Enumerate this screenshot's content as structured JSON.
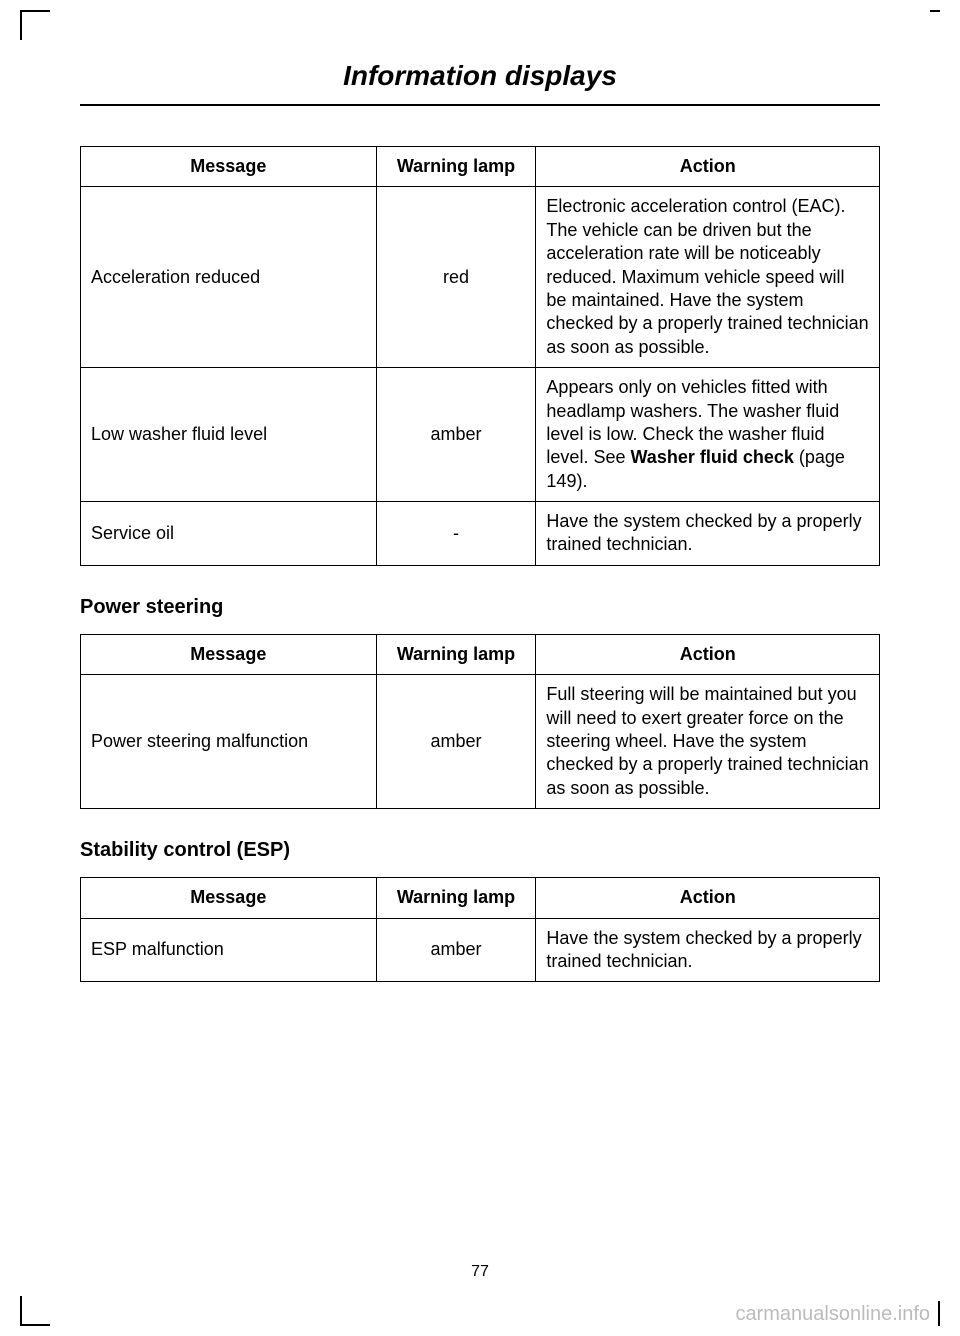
{
  "page": {
    "title": "Information displays",
    "number": "77",
    "watermark": "carmanualsonline.info"
  },
  "table1": {
    "headers": {
      "message": "Message",
      "lamp": "Warning lamp",
      "action": "Action"
    },
    "rows": [
      {
        "message": "Acceleration reduced",
        "lamp": "red",
        "action": "Electronic acceleration control (EAC). The vehicle can be driven but the acceleration rate will be noticeably reduced. Maximum vehicle speed will be maintained. Have the system checked by a properly trained technician as soon as possible."
      },
      {
        "message": "Low washer fluid level",
        "lamp": "amber",
        "action_pre": "Appears only on vehicles fitted with headlamp washers. The washer fluid level is low. Check the washer fluid level.  See ",
        "action_bold": "Washer fluid check",
        "action_post": " (page 149)."
      },
      {
        "message": "Service oil",
        "lamp": "-",
        "action": "Have the system checked by a properly trained technician."
      }
    ]
  },
  "section2": {
    "heading": "Power steering",
    "headers": {
      "message": "Message",
      "lamp": "Warning lamp",
      "action": "Action"
    },
    "rows": [
      {
        "message": "Power steering malfunction",
        "lamp": "amber",
        "action": "Full steering will be maintained but you will need to exert greater force on the steering wheel. Have the system checked by a properly trained technician as soon as possible."
      }
    ]
  },
  "section3": {
    "heading": "Stability control (ESP)",
    "headers": {
      "message": "Message",
      "lamp": "Warning lamp",
      "action": "Action"
    },
    "rows": [
      {
        "message": "ESP malfunction",
        "lamp": "amber",
        "action": "Have the system checked by a properly trained technician."
      }
    ]
  }
}
